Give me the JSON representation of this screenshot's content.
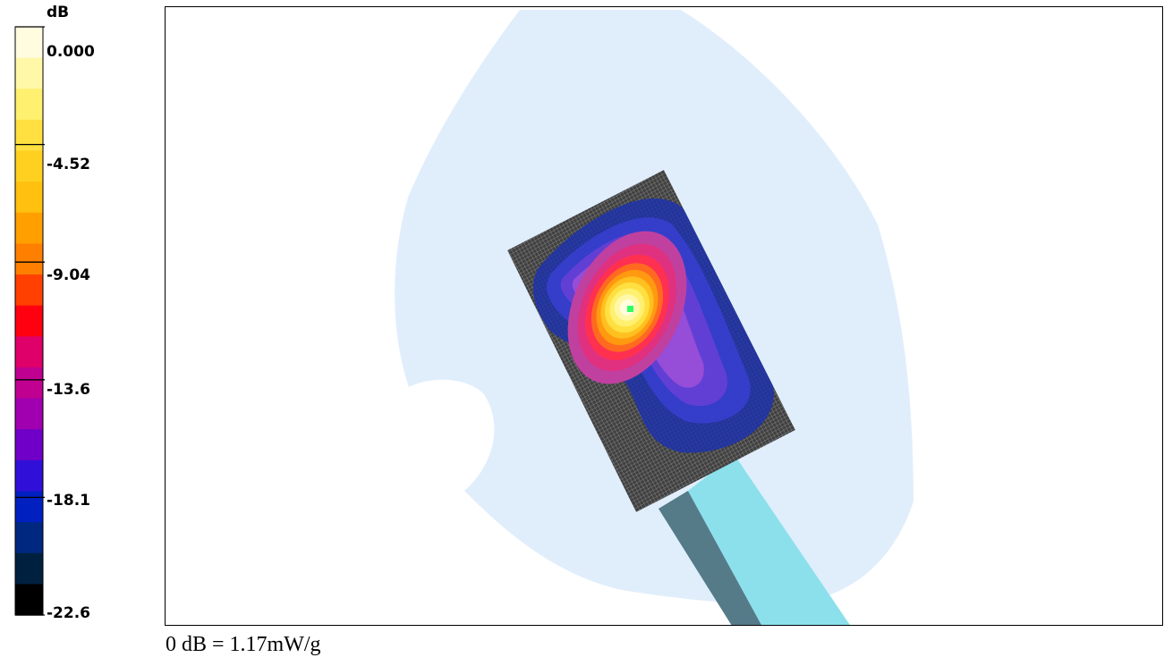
{
  "chart_data": {
    "type": "heatmap",
    "title": "",
    "colorbar": {
      "unit": "dB",
      "range": [
        -22.6,
        0.0
      ],
      "ticks": [
        "0.000",
        "-4.52",
        "-9.04",
        "-13.6",
        "-18.1",
        "-22.6"
      ],
      "colors": [
        "#fffce0",
        "#fff8a8",
        "#fff070",
        "#ffe040",
        "#ffd020",
        "#ffc010",
        "#ffa000",
        "#ff8000",
        "#ff4000",
        "#ff0010",
        "#e0006a",
        "#c00090",
        "#a000b0",
        "#7000c8",
        "#3010d8",
        "#0020c0",
        "#002880",
        "#002040",
        "#000000"
      ]
    },
    "annotation": "0 dB = 1.17mW/g",
    "peak_color": "#30ff60",
    "phantom_color": "#e0eefc",
    "grid_base_color": "#404040",
    "device_colors": {
      "dark": "#557b89",
      "light": "#8ce0ec"
    }
  }
}
